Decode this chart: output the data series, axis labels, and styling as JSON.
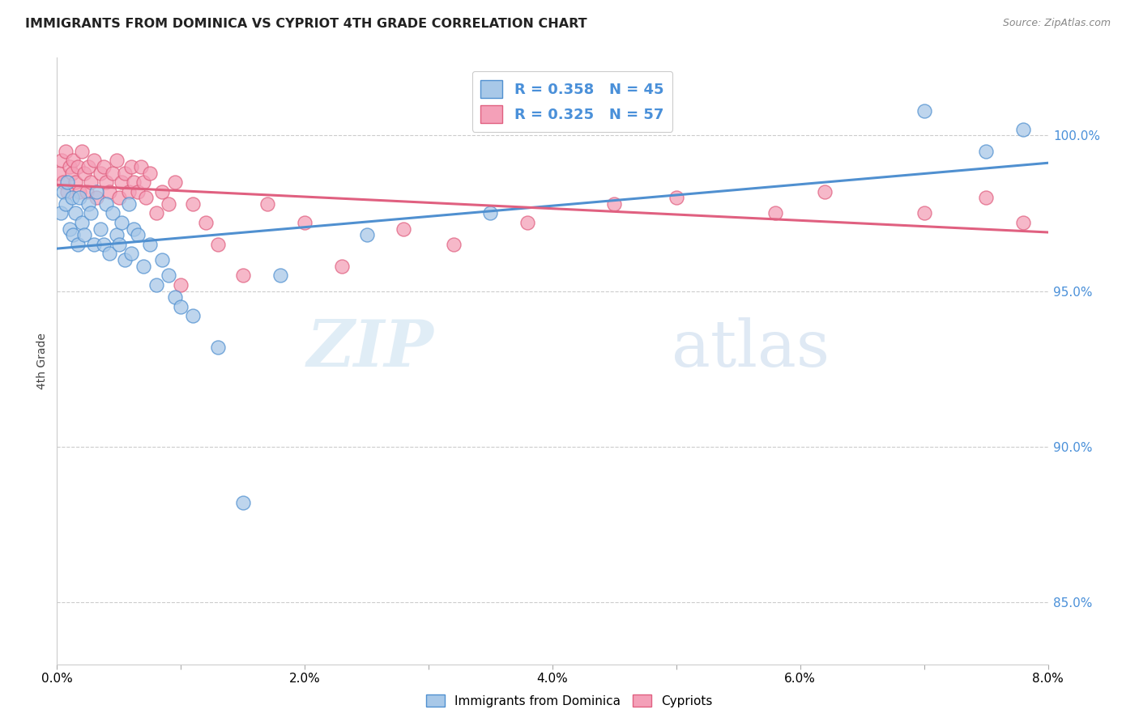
{
  "title": "IMMIGRANTS FROM DOMINICA VS CYPRIOT 4TH GRADE CORRELATION CHART",
  "source": "Source: ZipAtlas.com",
  "ylabel": "4th Grade",
  "xlim": [
    0.0,
    8.0
  ],
  "ylim": [
    83.0,
    102.5
  ],
  "yticks": [
    85.0,
    90.0,
    95.0,
    100.0
  ],
  "ytick_labels": [
    "85.0%",
    "90.0%",
    "95.0%",
    "100.0%"
  ],
  "xticks": [
    0.0,
    1.0,
    2.0,
    3.0,
    4.0,
    5.0,
    6.0,
    7.0,
    8.0
  ],
  "xtick_labels": [
    "0.0%",
    "",
    "2.0%",
    "",
    "4.0%",
    "",
    "6.0%",
    "",
    "8.0%"
  ],
  "legend_label_blue": "Immigrants from Dominica",
  "legend_label_pink": "Cypriots",
  "R_blue": 0.358,
  "N_blue": 45,
  "R_pink": 0.325,
  "N_pink": 57,
  "blue_color": "#A8C8E8",
  "pink_color": "#F4A0B8",
  "blue_line_color": "#5090D0",
  "pink_line_color": "#E06080",
  "watermark_zip": "ZIP",
  "watermark_atlas": "atlas",
  "blue_x": [
    0.03,
    0.05,
    0.07,
    0.08,
    0.1,
    0.12,
    0.13,
    0.15,
    0.17,
    0.18,
    0.2,
    0.22,
    0.25,
    0.27,
    0.3,
    0.32,
    0.35,
    0.38,
    0.4,
    0.42,
    0.45,
    0.48,
    0.5,
    0.52,
    0.55,
    0.58,
    0.6,
    0.62,
    0.65,
    0.7,
    0.75,
    0.8,
    0.85,
    0.9,
    0.95,
    1.0,
    1.1,
    1.3,
    1.5,
    1.8,
    2.5,
    3.5,
    7.0,
    7.5,
    7.8
  ],
  "blue_y": [
    97.5,
    98.2,
    97.8,
    98.5,
    97.0,
    98.0,
    96.8,
    97.5,
    96.5,
    98.0,
    97.2,
    96.8,
    97.8,
    97.5,
    96.5,
    98.2,
    97.0,
    96.5,
    97.8,
    96.2,
    97.5,
    96.8,
    96.5,
    97.2,
    96.0,
    97.8,
    96.2,
    97.0,
    96.8,
    95.8,
    96.5,
    95.2,
    96.0,
    95.5,
    94.8,
    94.5,
    94.2,
    93.2,
    88.2,
    95.5,
    96.8,
    97.5,
    100.8,
    99.5,
    100.2
  ],
  "pink_x": [
    0.02,
    0.04,
    0.05,
    0.07,
    0.08,
    0.1,
    0.12,
    0.13,
    0.15,
    0.17,
    0.18,
    0.2,
    0.22,
    0.24,
    0.25,
    0.27,
    0.3,
    0.32,
    0.35,
    0.38,
    0.4,
    0.42,
    0.45,
    0.48,
    0.5,
    0.52,
    0.55,
    0.58,
    0.6,
    0.62,
    0.65,
    0.68,
    0.7,
    0.72,
    0.75,
    0.8,
    0.85,
    0.9,
    0.95,
    1.0,
    1.1,
    1.2,
    1.3,
    1.5,
    1.7,
    2.0,
    2.3,
    2.8,
    3.2,
    3.8,
    4.5,
    5.0,
    5.8,
    6.2,
    7.0,
    7.5,
    7.8
  ],
  "pink_y": [
    98.8,
    99.2,
    98.5,
    99.5,
    98.2,
    99.0,
    98.8,
    99.2,
    98.5,
    99.0,
    98.2,
    99.5,
    98.8,
    98.2,
    99.0,
    98.5,
    99.2,
    98.0,
    98.8,
    99.0,
    98.5,
    98.2,
    98.8,
    99.2,
    98.0,
    98.5,
    98.8,
    98.2,
    99.0,
    98.5,
    98.2,
    99.0,
    98.5,
    98.0,
    98.8,
    97.5,
    98.2,
    97.8,
    98.5,
    95.2,
    97.8,
    97.2,
    96.5,
    95.5,
    97.8,
    97.2,
    95.8,
    97.0,
    96.5,
    97.2,
    97.8,
    98.0,
    97.5,
    98.2,
    97.5,
    98.0,
    97.2
  ]
}
